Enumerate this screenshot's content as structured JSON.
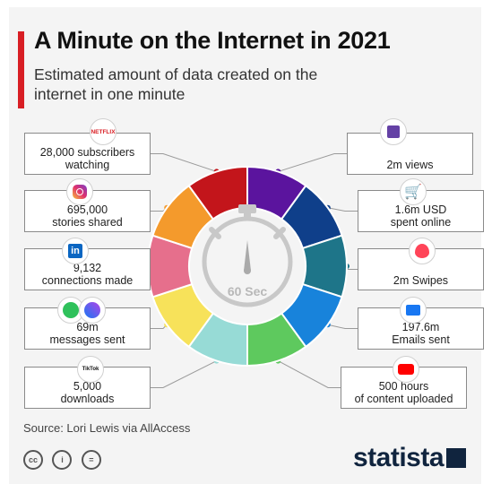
{
  "header": {
    "title": "A Minute on the Internet in 2021",
    "subtitle": "Estimated amount of data created on the internet in one minute"
  },
  "chart_data": {
    "type": "pie",
    "variant": "donut",
    "center_label": "60 Sec",
    "segments": [
      {
        "service": "Twitch",
        "label": "2m views",
        "color": "#5b149e",
        "side": "right"
      },
      {
        "service": "Online shopping",
        "label": "1.6m USD\nspent online",
        "color": "#0f3f8a",
        "side": "right"
      },
      {
        "service": "Tinder",
        "label": "2m Swipes",
        "color": "#1e7589",
        "side": "right"
      },
      {
        "service": "Email",
        "label": "197.6m\nEmails sent",
        "color": "#1883db",
        "side": "right"
      },
      {
        "service": "YouTube",
        "label": "500 hours\nof content uploaded",
        "color": "#5ec95e",
        "side": "right"
      },
      {
        "service": "TikTok",
        "label": "5,000\ndownloads",
        "color": "#97dbd6",
        "side": "left"
      },
      {
        "service": "WhatsApp / Messenger",
        "label": "69m\nmessages sent",
        "color": "#f7e25a",
        "side": "left"
      },
      {
        "service": "LinkedIn",
        "label": "9,132\nconnections made",
        "color": "#e66f8c",
        "side": "left"
      },
      {
        "service": "Instagram",
        "label": "695,000\nstories shared",
        "color": "#f49a2c",
        "side": "left"
      },
      {
        "service": "Netflix",
        "label": "28,000 subscribers\nwatching",
        "color": "#c3151b",
        "side": "left"
      }
    ]
  },
  "badges": {
    "netflix_text": "NETFLIX",
    "linkedin_text": "in",
    "tiktok_text": "TikTok"
  },
  "footer": {
    "source": "Source: Lori Lewis via AllAccess",
    "brand": "statista",
    "cc_labels": [
      "cc",
      "i",
      "="
    ]
  }
}
